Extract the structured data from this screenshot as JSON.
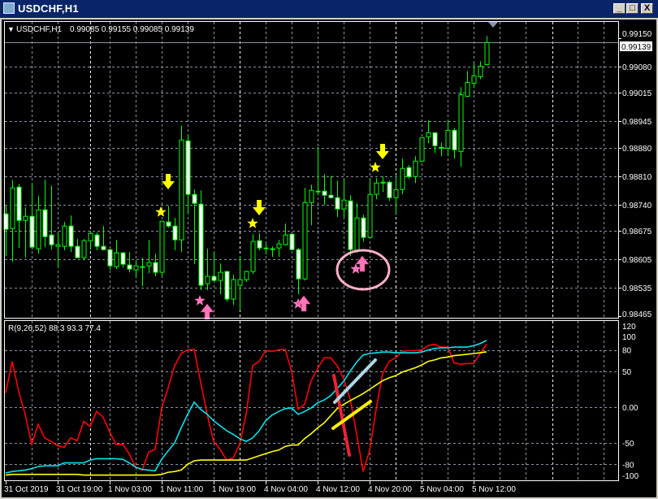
{
  "window": {
    "title": "USDCHF,H1",
    "buttons": {
      "minimize": "_",
      "maximize": "□",
      "close": "X"
    }
  },
  "chart": {
    "symbol_label": "USDCHF,H1",
    "ohlc_readout": "0.99085 0.99155 0.99085 0.99139",
    "current_price": "0.99139",
    "price_ticks": [
      "0.99150",
      "0.99080",
      "0.99015",
      "0.98945",
      "0.98880",
      "0.98810",
      "0.98740",
      "0.98675",
      "0.98605",
      "0.98535",
      "0.98465"
    ],
    "colors": {
      "background": "#000000",
      "candle_outline": "#00ff00",
      "bear_fill": "#ffffff",
      "bull_fill": "#000000",
      "grid": "#8a94a0"
    },
    "candles_ohlc": [
      [
        0.98717,
        0.98737,
        0.98613,
        0.98679
      ],
      [
        0.98681,
        0.98801,
        0.98599,
        0.98781
      ],
      [
        0.98783,
        0.98791,
        0.98633,
        0.98701
      ],
      [
        0.98701,
        0.98733,
        0.98609,
        0.98711
      ],
      [
        0.98711,
        0.98793,
        0.98629,
        0.98635
      ],
      [
        0.98631,
        0.98761,
        0.98619,
        0.98727
      ],
      [
        0.98727,
        0.98801,
        0.98635,
        0.98661
      ],
      [
        0.98665,
        0.98787,
        0.98629,
        0.98641
      ],
      [
        0.98637,
        0.98671,
        0.98585,
        0.98641
      ],
      [
        0.98637,
        0.98697,
        0.98627,
        0.98687
      ],
      [
        0.98687,
        0.98713,
        0.98623,
        0.98637
      ],
      [
        0.98637,
        0.98655,
        0.98609,
        0.98609
      ],
      [
        0.98609,
        0.98655,
        0.98603,
        0.98651
      ],
      [
        0.98651,
        0.98675,
        0.98629,
        0.98669
      ],
      [
        0.98665,
        0.98671,
        0.98627,
        0.98637
      ],
      [
        0.98637,
        0.98687,
        0.98627,
        0.98629
      ],
      [
        0.98629,
        0.98629,
        0.98579,
        0.98589
      ],
      [
        0.98587,
        0.98653,
        0.98581,
        0.98621
      ],
      [
        0.98621,
        0.98623,
        0.98585,
        0.98593
      ],
      [
        0.98591,
        0.98623,
        0.98573,
        0.98581
      ],
      [
        0.98579,
        0.98603,
        0.98559,
        0.98589
      ],
      [
        0.98585,
        0.98609,
        0.98539,
        0.98587
      ],
      [
        0.98589,
        0.98653,
        0.98571,
        0.98597
      ],
      [
        0.98597,
        0.98619,
        0.98563,
        0.98573
      ],
      [
        0.98573,
        0.98699,
        0.98563,
        0.98699
      ],
      [
        0.98697,
        0.98737,
        0.98683,
        0.98687
      ],
      [
        0.98687,
        0.98707,
        0.98627,
        0.98653
      ],
      [
        0.98653,
        0.98935,
        0.98623,
        0.98899
      ],
      [
        0.98897,
        0.98913,
        0.98717,
        0.98765
      ],
      [
        0.98765,
        0.98777,
        0.98593,
        0.98743
      ],
      [
        0.98741,
        0.98775,
        0.98529,
        0.98541
      ],
      [
        0.98545,
        0.98631,
        0.98529,
        0.98563
      ],
      [
        0.98563,
        0.98625,
        0.98549,
        0.98553
      ],
      [
        0.98553,
        0.98595,
        0.98519,
        0.98573
      ],
      [
        0.98575,
        0.98577,
        0.98501,
        0.98507
      ],
      [
        0.98507,
        0.98567,
        0.98493,
        0.98555
      ],
      [
        0.98541,
        0.98613,
        0.98479,
        0.98555
      ],
      [
        0.98555,
        0.98577,
        0.98549,
        0.98575
      ],
      [
        0.98575,
        0.98667,
        0.98569,
        0.98649
      ],
      [
        0.98651,
        0.98669,
        0.98627,
        0.98633
      ],
      [
        0.98633,
        0.98645,
        0.98617,
        0.98633
      ],
      [
        0.98631,
        0.98637,
        0.98611,
        0.98631
      ],
      [
        0.98633,
        0.98653,
        0.98611,
        0.98643
      ],
      [
        0.98641,
        0.98693,
        0.98639,
        0.98665
      ],
      [
        0.98667,
        0.98669,
        0.98627,
        0.98629
      ],
      [
        0.98629,
        0.98633,
        0.98519,
        0.98557
      ],
      [
        0.98557,
        0.98781,
        0.98553,
        0.98745
      ],
      [
        0.98745,
        0.98789,
        0.98689,
        0.98775
      ],
      [
        0.98773,
        0.98881,
        0.98763,
        0.98773
      ],
      [
        0.98773,
        0.98815,
        0.98739,
        0.98763
      ],
      [
        0.98763,
        0.98811,
        0.98755,
        0.98757
      ],
      [
        0.98757,
        0.98799,
        0.98709,
        0.98729
      ],
      [
        0.98729,
        0.98803,
        0.98709,
        0.98751
      ],
      [
        0.98749,
        0.98763,
        0.98613,
        0.98629
      ],
      [
        0.98625,
        0.98743,
        0.98621,
        0.98707
      ],
      [
        0.98707,
        0.98715,
        0.98649,
        0.98659
      ],
      [
        0.98659,
        0.98803,
        0.98659,
        0.98765
      ],
      [
        0.98765,
        0.98805,
        0.98753,
        0.98793
      ],
      [
        0.98795,
        0.98809,
        0.98771,
        0.98795
      ],
      [
        0.98795,
        0.98799,
        0.98749,
        0.98757
      ],
      [
        0.98757,
        0.98807,
        0.98717,
        0.98777
      ],
      [
        0.98777,
        0.98853,
        0.98765,
        0.98829
      ],
      [
        0.98831,
        0.98837,
        0.98803,
        0.98809
      ],
      [
        0.98809,
        0.98859,
        0.98793,
        0.98847
      ],
      [
        0.98847,
        0.98905,
        0.98845,
        0.98905
      ],
      [
        0.98907,
        0.98947,
        0.98891,
        0.98917
      ],
      [
        0.98917,
        0.98917,
        0.98867,
        0.98885
      ],
      [
        0.98881,
        0.98893,
        0.98859,
        0.98881
      ],
      [
        0.98879,
        0.98949,
        0.98859,
        0.98923
      ],
      [
        0.98923,
        0.98929,
        0.98853,
        0.98875
      ],
      [
        0.98871,
        0.99029,
        0.98833,
        0.99011
      ],
      [
        0.99007,
        0.99069,
        0.99005,
        0.99041
      ],
      [
        0.99039,
        0.99089,
        0.99027,
        0.99057
      ],
      [
        0.99055,
        0.99093,
        0.99049,
        0.99081
      ],
      [
        0.99085,
        0.99155,
        0.99085,
        0.99139
      ]
    ],
    "signals": [
      {
        "type": "sell",
        "color": "#ffff00",
        "icons": [
          "star-icon",
          "arrow-down-icon"
        ]
      },
      {
        "type": "buy",
        "color": "#ff77bb",
        "icons": [
          "star-icon",
          "arrow-up-icon"
        ]
      }
    ],
    "highlight_circle_color": "#ffb0c8"
  },
  "indicator": {
    "label": "R(9,26,52) 88.3 93.3 77.4",
    "ticks": [
      "120",
      "100",
      "80",
      "50",
      "0.00",
      "-50",
      "-80",
      "-100"
    ],
    "tick_values": [
      120,
      100,
      80,
      50,
      0,
      -50,
      -80,
      -100
    ],
    "grid_levels": [
      80,
      50,
      0,
      -50,
      -80
    ],
    "series": [
      {
        "color": "#ff0000",
        "values": [
          20,
          64,
          22,
          -10,
          -52,
          -24,
          -43,
          -48,
          -54,
          -56,
          -43,
          -47,
          -20,
          -27,
          -6,
          -14,
          -35,
          -52,
          -52,
          -65,
          -84,
          -88,
          -63,
          -59,
          -1,
          27,
          58,
          75,
          80,
          81,
          35,
          -10,
          -48,
          -59,
          -74,
          -71,
          -52,
          -10,
          58,
          64,
          79,
          78,
          80,
          81,
          50,
          -3,
          4,
          37,
          54,
          69,
          69,
          58,
          40,
          12,
          -37,
          -90,
          -61,
          -3,
          47,
          64,
          69,
          78,
          79,
          79,
          80,
          86,
          88,
          84,
          84,
          62,
          60,
          61,
          61,
          75,
          88.3
        ]
      },
      {
        "color": "#00e5ee",
        "values": [
          -92,
          -90,
          -89,
          -88,
          -86,
          -83,
          -82,
          -82,
          -82,
          -78,
          -78,
          -78,
          -78,
          -74,
          -72,
          -72,
          -72,
          -72,
          -73,
          -78,
          -84,
          -87,
          -88,
          -89,
          -73,
          -61,
          -50,
          -29,
          -10,
          7,
          -3,
          -10,
          -19,
          -26,
          -33,
          -38,
          -44,
          -48,
          -43,
          -33,
          -19,
          -11,
          -6,
          -2,
          -1,
          -10,
          -6,
          -1,
          6,
          10,
          16,
          26,
          36,
          50,
          63,
          73,
          75,
          76,
          77,
          77,
          76,
          76,
          76,
          76,
          77,
          80,
          82,
          83,
          83,
          84,
          84,
          84,
          86,
          89,
          93.3
        ]
      },
      {
        "color": "#ffff00",
        "values": [
          -95,
          -94,
          -94,
          -94,
          -94,
          -94,
          -94,
          -94,
          -94,
          -94,
          -94,
          -94,
          -95,
          -95,
          -95,
          -95,
          -95,
          -95,
          -95,
          -95,
          -95,
          -95,
          -95,
          -95,
          -94,
          -91,
          -90,
          -88,
          -80,
          -75,
          -74,
          -74,
          -74,
          -74,
          -74,
          -74,
          -74,
          -74,
          -71,
          -68,
          -65,
          -62,
          -60,
          -55,
          -53,
          -53,
          -44,
          -37,
          -29,
          -22,
          -12,
          -2,
          4,
          9,
          14,
          19,
          25,
          31,
          37,
          41,
          44,
          49,
          52,
          55,
          59,
          64,
          66,
          69,
          70,
          72,
          73,
          74,
          75,
          76,
          77.4
        ]
      }
    ],
    "drawn_lines": [
      {
        "color": "#ee2233",
        "name": "red-trendline"
      },
      {
        "color": "#add8e6",
        "name": "lightblue-trendline"
      },
      {
        "color": "#ffee00",
        "name": "yellow-trendline"
      }
    ]
  },
  "time_axis": [
    "31 Oct 2019",
    "31 Oct 19:00",
    "1 Nov 03:00",
    "1 Nov 11:00",
    "1 Nov 19:00",
    "4 Nov 04:00",
    "4 Nov 12:00",
    "4 Nov 20:00",
    "5 Nov 04:00",
    "5 Nov 12:00"
  ]
}
